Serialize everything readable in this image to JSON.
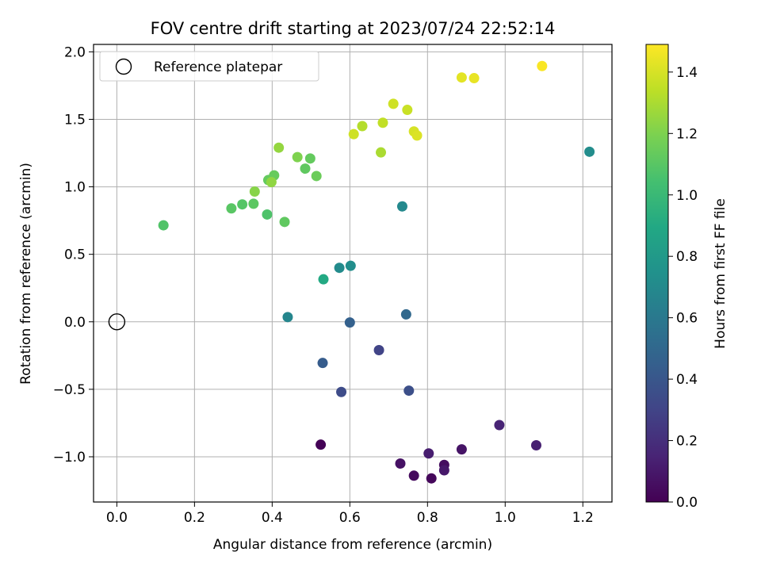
{
  "chart_data": {
    "type": "scatter",
    "title": "FOV centre drift starting at 2023/07/24 22:52:14",
    "xlabel": "Angular distance from reference (arcmin)",
    "ylabel": "Rotation from reference (arcmin)",
    "xlim": [
      -0.06,
      1.275
    ],
    "ylim": [
      -1.335,
      2.055
    ],
    "x_ticks": [
      0.0,
      0.2,
      0.4,
      0.6,
      0.8,
      1.0,
      1.2
    ],
    "x_tick_labels": [
      "0.0",
      "0.2",
      "0.4",
      "0.6",
      "0.8",
      "1.0",
      "1.2"
    ],
    "y_ticks": [
      -1.0,
      -0.5,
      0.0,
      0.5,
      1.0,
      1.5,
      2.0
    ],
    "y_tick_labels": [
      "−1.0",
      "−0.5",
      "0.0",
      "0.5",
      "1.0",
      "1.5",
      "2.0"
    ],
    "grid": true,
    "legend": {
      "placement": "top-left",
      "entries": [
        {
          "label": "Reference platepar",
          "marker": "open-circle",
          "color": "#000000"
        }
      ]
    },
    "reference_point": {
      "x": 0.0,
      "y": 0.0
    },
    "colorbar": {
      "label": "Hours from first FF file",
      "colormap": "viridis",
      "range": [
        0.0,
        1.49
      ],
      "ticks": [
        0.0,
        0.2,
        0.4,
        0.6,
        0.8,
        1.0,
        1.2,
        1.4
      ],
      "tick_labels": [
        "0.0",
        "0.2",
        "0.4",
        "0.6",
        "0.8",
        "1.0",
        "1.2",
        "1.4"
      ]
    },
    "points": [
      {
        "x": 0.525,
        "y": -0.91,
        "c": 0.01
      },
      {
        "x": 0.81,
        "y": -1.16,
        "c": 0.03
      },
      {
        "x": 0.765,
        "y": -1.14,
        "c": 0.04
      },
      {
        "x": 0.843,
        "y": -1.06,
        "c": 0.05
      },
      {
        "x": 0.73,
        "y": -1.05,
        "c": 0.07
      },
      {
        "x": 0.888,
        "y": -0.945,
        "c": 0.08
      },
      {
        "x": 0.843,
        "y": -1.1,
        "c": 0.1
      },
      {
        "x": 0.803,
        "y": -0.975,
        "c": 0.12
      },
      {
        "x": 1.08,
        "y": -0.915,
        "c": 0.13
      },
      {
        "x": 0.985,
        "y": -0.765,
        "c": 0.15
      },
      {
        "x": 0.675,
        "y": -0.21,
        "c": 0.3
      },
      {
        "x": 0.578,
        "y": -0.52,
        "c": 0.34
      },
      {
        "x": 0.752,
        "y": -0.51,
        "c": 0.36
      },
      {
        "x": 0.53,
        "y": -0.305,
        "c": 0.43
      },
      {
        "x": 0.6,
        "y": -0.005,
        "c": 0.46
      },
      {
        "x": 0.745,
        "y": 0.055,
        "c": 0.5
      },
      {
        "x": 0.44,
        "y": 0.035,
        "c": 0.68
      },
      {
        "x": 0.573,
        "y": 0.4,
        "c": 0.71
      },
      {
        "x": 0.602,
        "y": 0.415,
        "c": 0.73
      },
      {
        "x": 0.735,
        "y": 0.855,
        "c": 0.7
      },
      {
        "x": 1.217,
        "y": 1.26,
        "c": 0.72
      },
      {
        "x": 0.532,
        "y": 0.315,
        "c": 0.9
      },
      {
        "x": 0.12,
        "y": 0.715,
        "c": 1.08
      },
      {
        "x": 0.295,
        "y": 0.84,
        "c": 1.1
      },
      {
        "x": 0.323,
        "y": 0.87,
        "c": 1.09
      },
      {
        "x": 0.352,
        "y": 0.875,
        "c": 1.11
      },
      {
        "x": 0.387,
        "y": 0.795,
        "c": 1.07
      },
      {
        "x": 0.432,
        "y": 0.74,
        "c": 1.12
      },
      {
        "x": 0.355,
        "y": 0.965,
        "c": 1.22
      },
      {
        "x": 0.39,
        "y": 1.05,
        "c": 1.13
      },
      {
        "x": 0.405,
        "y": 1.085,
        "c": 1.14
      },
      {
        "x": 0.398,
        "y": 1.035,
        "c": 1.24
      },
      {
        "x": 0.485,
        "y": 1.135,
        "c": 1.12
      },
      {
        "x": 0.514,
        "y": 1.08,
        "c": 1.15
      },
      {
        "x": 0.498,
        "y": 1.21,
        "c": 1.13
      },
      {
        "x": 0.465,
        "y": 1.22,
        "c": 1.2
      },
      {
        "x": 0.417,
        "y": 1.29,
        "c": 1.25
      },
      {
        "x": 0.68,
        "y": 1.255,
        "c": 1.3
      },
      {
        "x": 0.61,
        "y": 1.39,
        "c": 1.38
      },
      {
        "x": 0.632,
        "y": 1.45,
        "c": 1.32
      },
      {
        "x": 0.685,
        "y": 1.475,
        "c": 1.35
      },
      {
        "x": 0.712,
        "y": 1.615,
        "c": 1.38
      },
      {
        "x": 0.748,
        "y": 1.57,
        "c": 1.37
      },
      {
        "x": 0.765,
        "y": 1.41,
        "c": 1.4
      },
      {
        "x": 0.773,
        "y": 1.38,
        "c": 1.41
      },
      {
        "x": 0.888,
        "y": 1.81,
        "c": 1.43
      },
      {
        "x": 0.92,
        "y": 1.805,
        "c": 1.44
      },
      {
        "x": 1.095,
        "y": 1.895,
        "c": 1.48
      }
    ]
  }
}
